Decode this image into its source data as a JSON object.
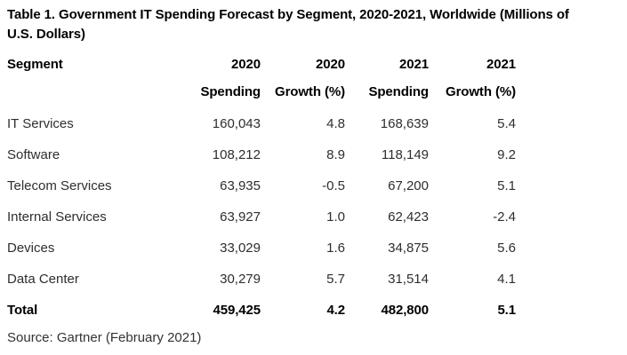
{
  "title": {
    "line1": "Table 1. Government IT Spending Forecast by Segment, 2020-2021, Worldwide (Millions of",
    "line2": "U.S. Dollars)"
  },
  "table": {
    "header": {
      "segment": "Segment",
      "cols": [
        {
          "year": "2020",
          "label": "Spending"
        },
        {
          "year": "2020",
          "label": "Growth (%)"
        },
        {
          "year": "2021",
          "label": "Spending"
        },
        {
          "year": "2021",
          "label": "Growth (%)"
        }
      ]
    },
    "rows": [
      {
        "segment": "IT Services",
        "spending_2020": "160,043",
        "growth_2020": "4.8",
        "spending_2021": "168,639",
        "growth_2021": "5.4"
      },
      {
        "segment": "Software",
        "spending_2020": "108,212",
        "growth_2020": "8.9",
        "spending_2021": "118,149",
        "growth_2021": "9.2"
      },
      {
        "segment": "Telecom Services",
        "spending_2020": "63,935",
        "growth_2020": "-0.5",
        "spending_2021": "67,200",
        "growth_2021": "5.1"
      },
      {
        "segment": "Internal Services",
        "spending_2020": "63,927",
        "growth_2020": "1.0",
        "spending_2021": "62,423",
        "growth_2021": "-2.4"
      },
      {
        "segment": "Devices",
        "spending_2020": "33,029",
        "growth_2020": "1.6",
        "spending_2021": "34,875",
        "growth_2021": "5.6"
      },
      {
        "segment": "Data Center",
        "spending_2020": "30,279",
        "growth_2020": "5.7",
        "spending_2021": "31,514",
        "growth_2021": "4.1"
      }
    ],
    "total": {
      "segment": "Total",
      "spending_2020": "459,425",
      "growth_2020": "4.2",
      "spending_2021": "482,800",
      "growth_2021": "5.1"
    }
  },
  "source": "Source: Gartner (February 2021)",
  "colors": {
    "title_text": "#000000",
    "body_text": "#2e2e2e",
    "background": "#ffffff"
  },
  "chart_data": {
    "type": "table",
    "title": "Table 1. Government IT Spending Forecast by Segment, 2020-2021, Worldwide (Millions of U.S. Dollars)",
    "columns": [
      "Segment",
      "2020 Spending",
      "2020 Growth (%)",
      "2021 Spending",
      "2021 Growth (%)"
    ],
    "rows": [
      [
        "IT Services",
        160043,
        4.8,
        168639,
        5.4
      ],
      [
        "Software",
        108212,
        8.9,
        118149,
        9.2
      ],
      [
        "Telecom Services",
        63935,
        -0.5,
        67200,
        5.1
      ],
      [
        "Internal Services",
        63927,
        1.0,
        62423,
        -2.4
      ],
      [
        "Devices",
        33029,
        1.6,
        34875,
        5.6
      ],
      [
        "Data Center",
        30279,
        5.7,
        31514,
        4.1
      ],
      [
        "Total",
        459425,
        4.2,
        482800,
        5.1
      ]
    ],
    "units": "Millions of U.S. Dollars",
    "source": "Source: Gartner (February 2021)"
  }
}
